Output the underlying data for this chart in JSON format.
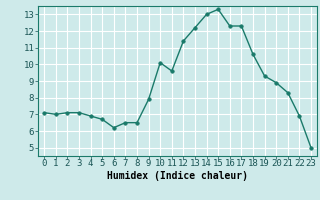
{
  "x": [
    0,
    1,
    2,
    3,
    4,
    5,
    6,
    7,
    8,
    9,
    10,
    11,
    12,
    13,
    14,
    15,
    16,
    17,
    18,
    19,
    20,
    21,
    22,
    23
  ],
  "y": [
    7.1,
    7.0,
    7.1,
    7.1,
    6.9,
    6.7,
    6.2,
    6.5,
    6.5,
    7.9,
    10.1,
    9.6,
    11.4,
    12.2,
    13.0,
    13.3,
    12.3,
    12.3,
    10.6,
    9.3,
    8.9,
    8.3,
    6.9,
    5.0
  ],
  "line_color": "#1a7a6a",
  "marker_color": "#1a7a6a",
  "bg_color": "#ceeaea",
  "grid_color": "#b8d8d8",
  "xlabel": "Humidex (Indice chaleur)",
  "xlim": [
    -0.5,
    23.5
  ],
  "ylim": [
    4.5,
    13.5
  ],
  "yticks": [
    5,
    6,
    7,
    8,
    9,
    10,
    11,
    12,
    13
  ],
  "xticks": [
    0,
    1,
    2,
    3,
    4,
    5,
    6,
    7,
    8,
    9,
    10,
    11,
    12,
    13,
    14,
    15,
    16,
    17,
    18,
    19,
    20,
    21,
    22,
    23
  ],
  "xlabel_fontsize": 7,
  "tick_fontsize": 6.5,
  "line_width": 1.0,
  "marker_size": 2.5
}
